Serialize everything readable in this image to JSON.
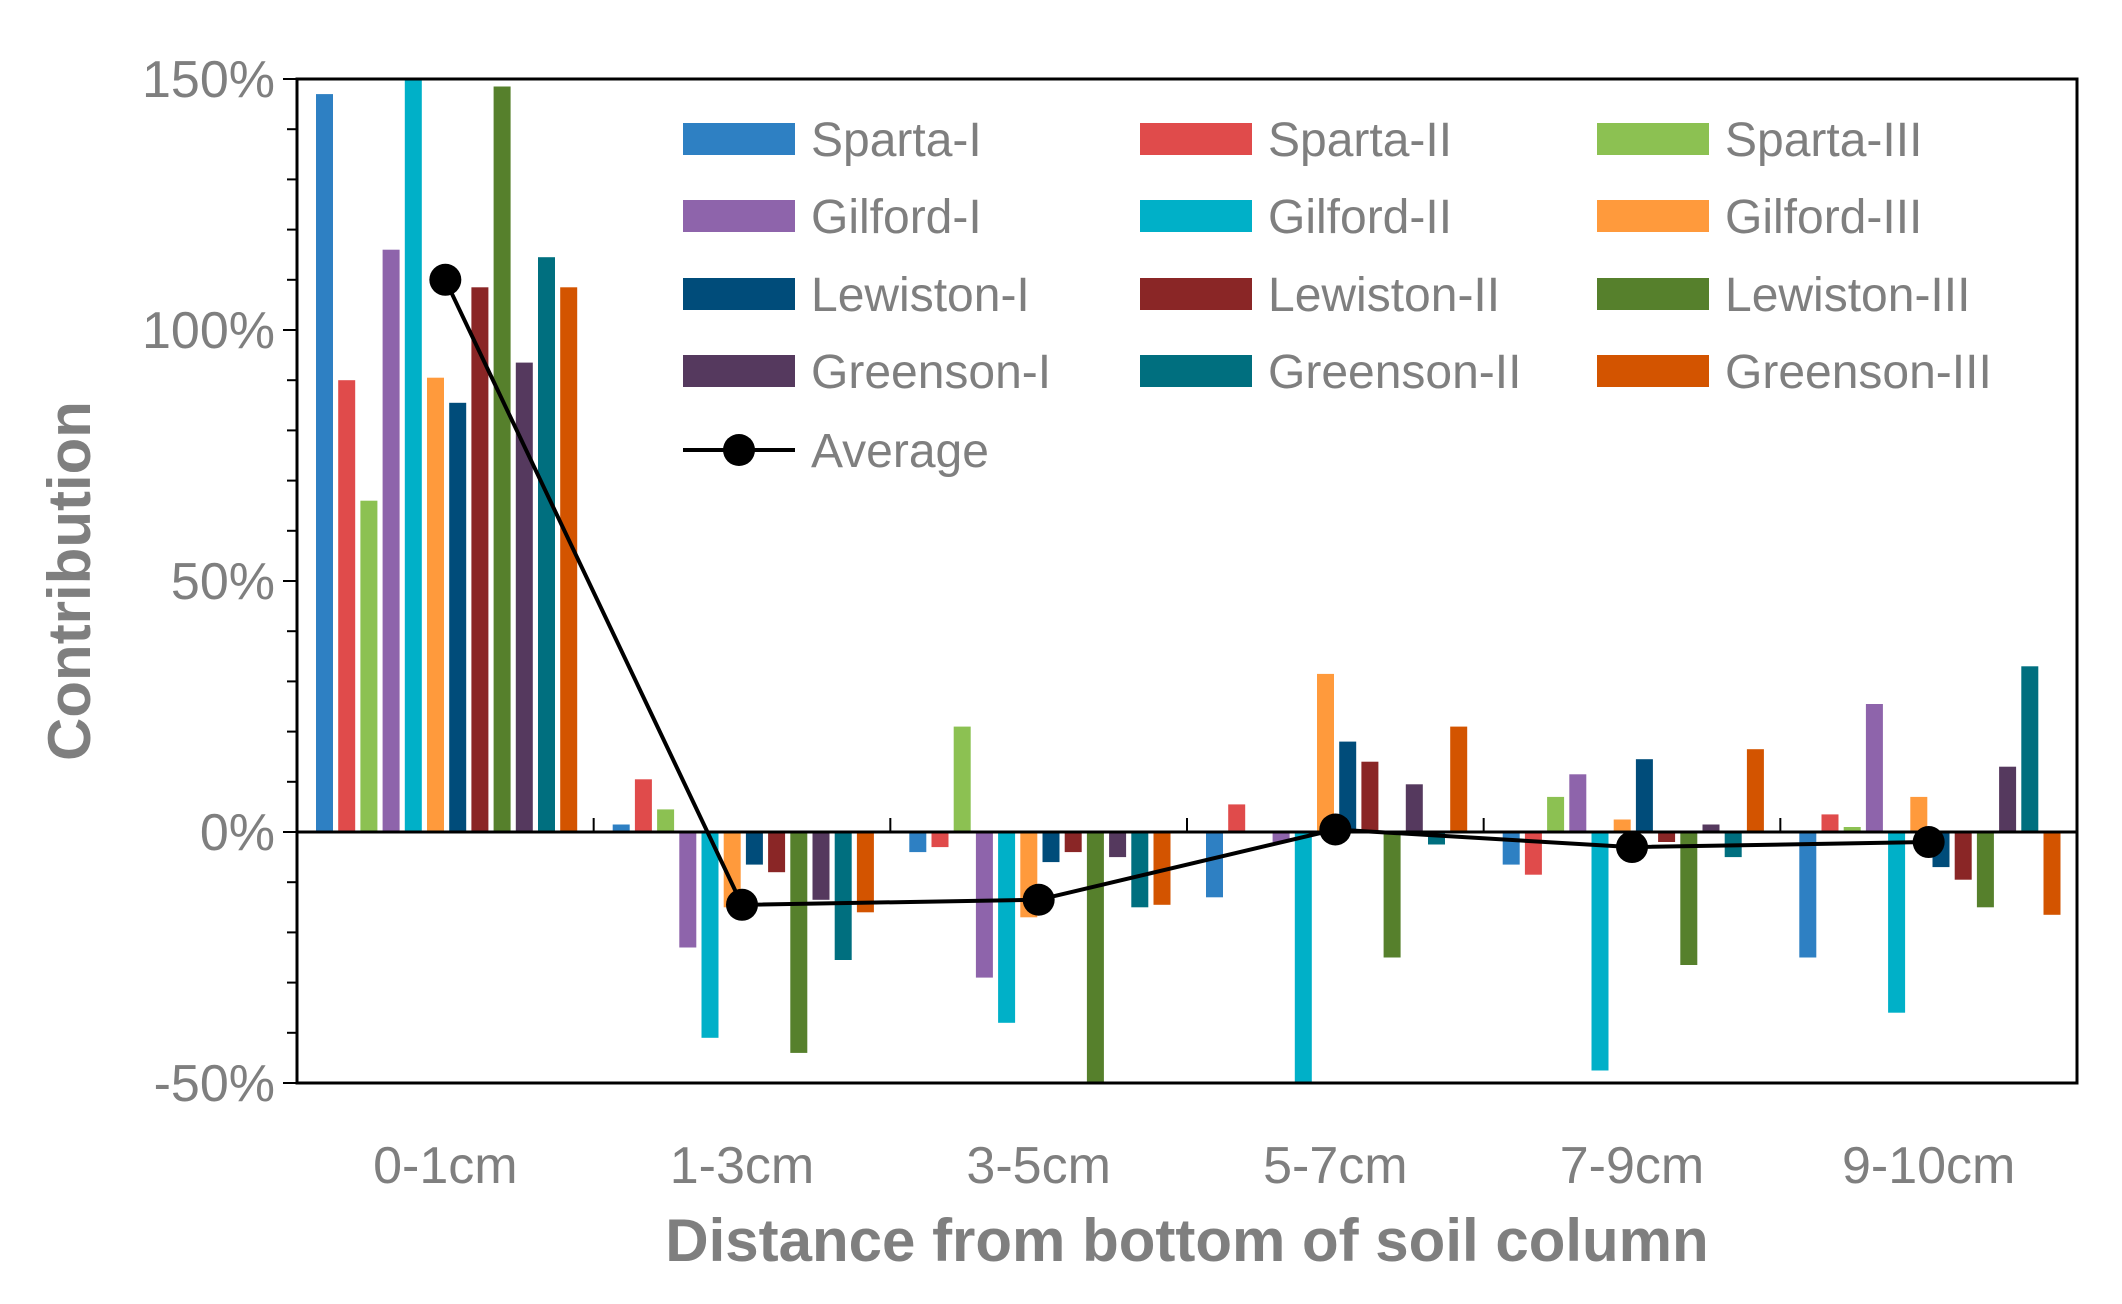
{
  "chart_data": {
    "type": "bar",
    "title": "",
    "xlabel": "Distance from bottom of soil column",
    "ylabel": "Contribution",
    "ylim": [
      -50,
      150
    ],
    "yticks": [
      -50,
      0,
      50,
      100,
      150
    ],
    "ytick_labels": [
      "-50%",
      "0%",
      "50%",
      "100%",
      "150%"
    ],
    "legend_position": "top-right",
    "categories": [
      "0-1cm",
      "1-3cm",
      "3-5cm",
      "5-7cm",
      "7-9cm",
      "9-10cm"
    ],
    "series": [
      {
        "name": "Sparta-I",
        "color": "#2e80c3",
        "values": [
          147,
          1.5,
          -4,
          -13,
          -6.5,
          -25
        ]
      },
      {
        "name": "Sparta-II",
        "color": "#e04b4b",
        "values": [
          90,
          10.5,
          -3,
          5.5,
          -8.5,
          3.5
        ]
      },
      {
        "name": "Sparta-III",
        "color": "#8cc152",
        "values": [
          66,
          4.5,
          21,
          0,
          7,
          1
        ]
      },
      {
        "name": "Gilford-I",
        "color": "#8e64ab",
        "values": [
          116,
          -23,
          -29,
          -2,
          11.5,
          25.5
        ]
      },
      {
        "name": "Gilford-II",
        "color": "#00b0c8",
        "values": [
          150,
          -41,
          -38,
          -50,
          -47.5,
          -36
        ]
      },
      {
        "name": "Gilford-III",
        "color": "#ff9a3c",
        "values": [
          90.5,
          -15,
          -17,
          31.5,
          2.5,
          7
        ]
      },
      {
        "name": "Lewiston-I",
        "color": "#004c7a",
        "values": [
          85.5,
          -6.5,
          -6,
          18,
          14.5,
          -7
        ]
      },
      {
        "name": "Lewiston-II",
        "color": "#8a2626",
        "values": [
          108.5,
          -8,
          -4,
          14,
          -2,
          -9.5
        ]
      },
      {
        "name": "Lewiston-III",
        "color": "#56802c",
        "values": [
          148.5,
          -44,
          -50,
          -25,
          -26.5,
          -15
        ]
      },
      {
        "name": "Greenson-I",
        "color": "#55395e",
        "values": [
          93.5,
          -13.5,
          -5,
          9.5,
          1.5,
          13
        ]
      },
      {
        "name": "Greenson-II",
        "color": "#006f7f",
        "values": [
          114.5,
          -25.5,
          -15,
          -2.5,
          -5,
          33
        ]
      },
      {
        "name": "Greenson-III",
        "color": "#d35400",
        "values": [
          108.5,
          -16,
          -14.5,
          21,
          16.5,
          -16.5
        ]
      }
    ],
    "average": {
      "name": "Average",
      "color": "#000000",
      "values": [
        110,
        -14.5,
        -13.5,
        0.5,
        -3,
        -2
      ]
    }
  }
}
